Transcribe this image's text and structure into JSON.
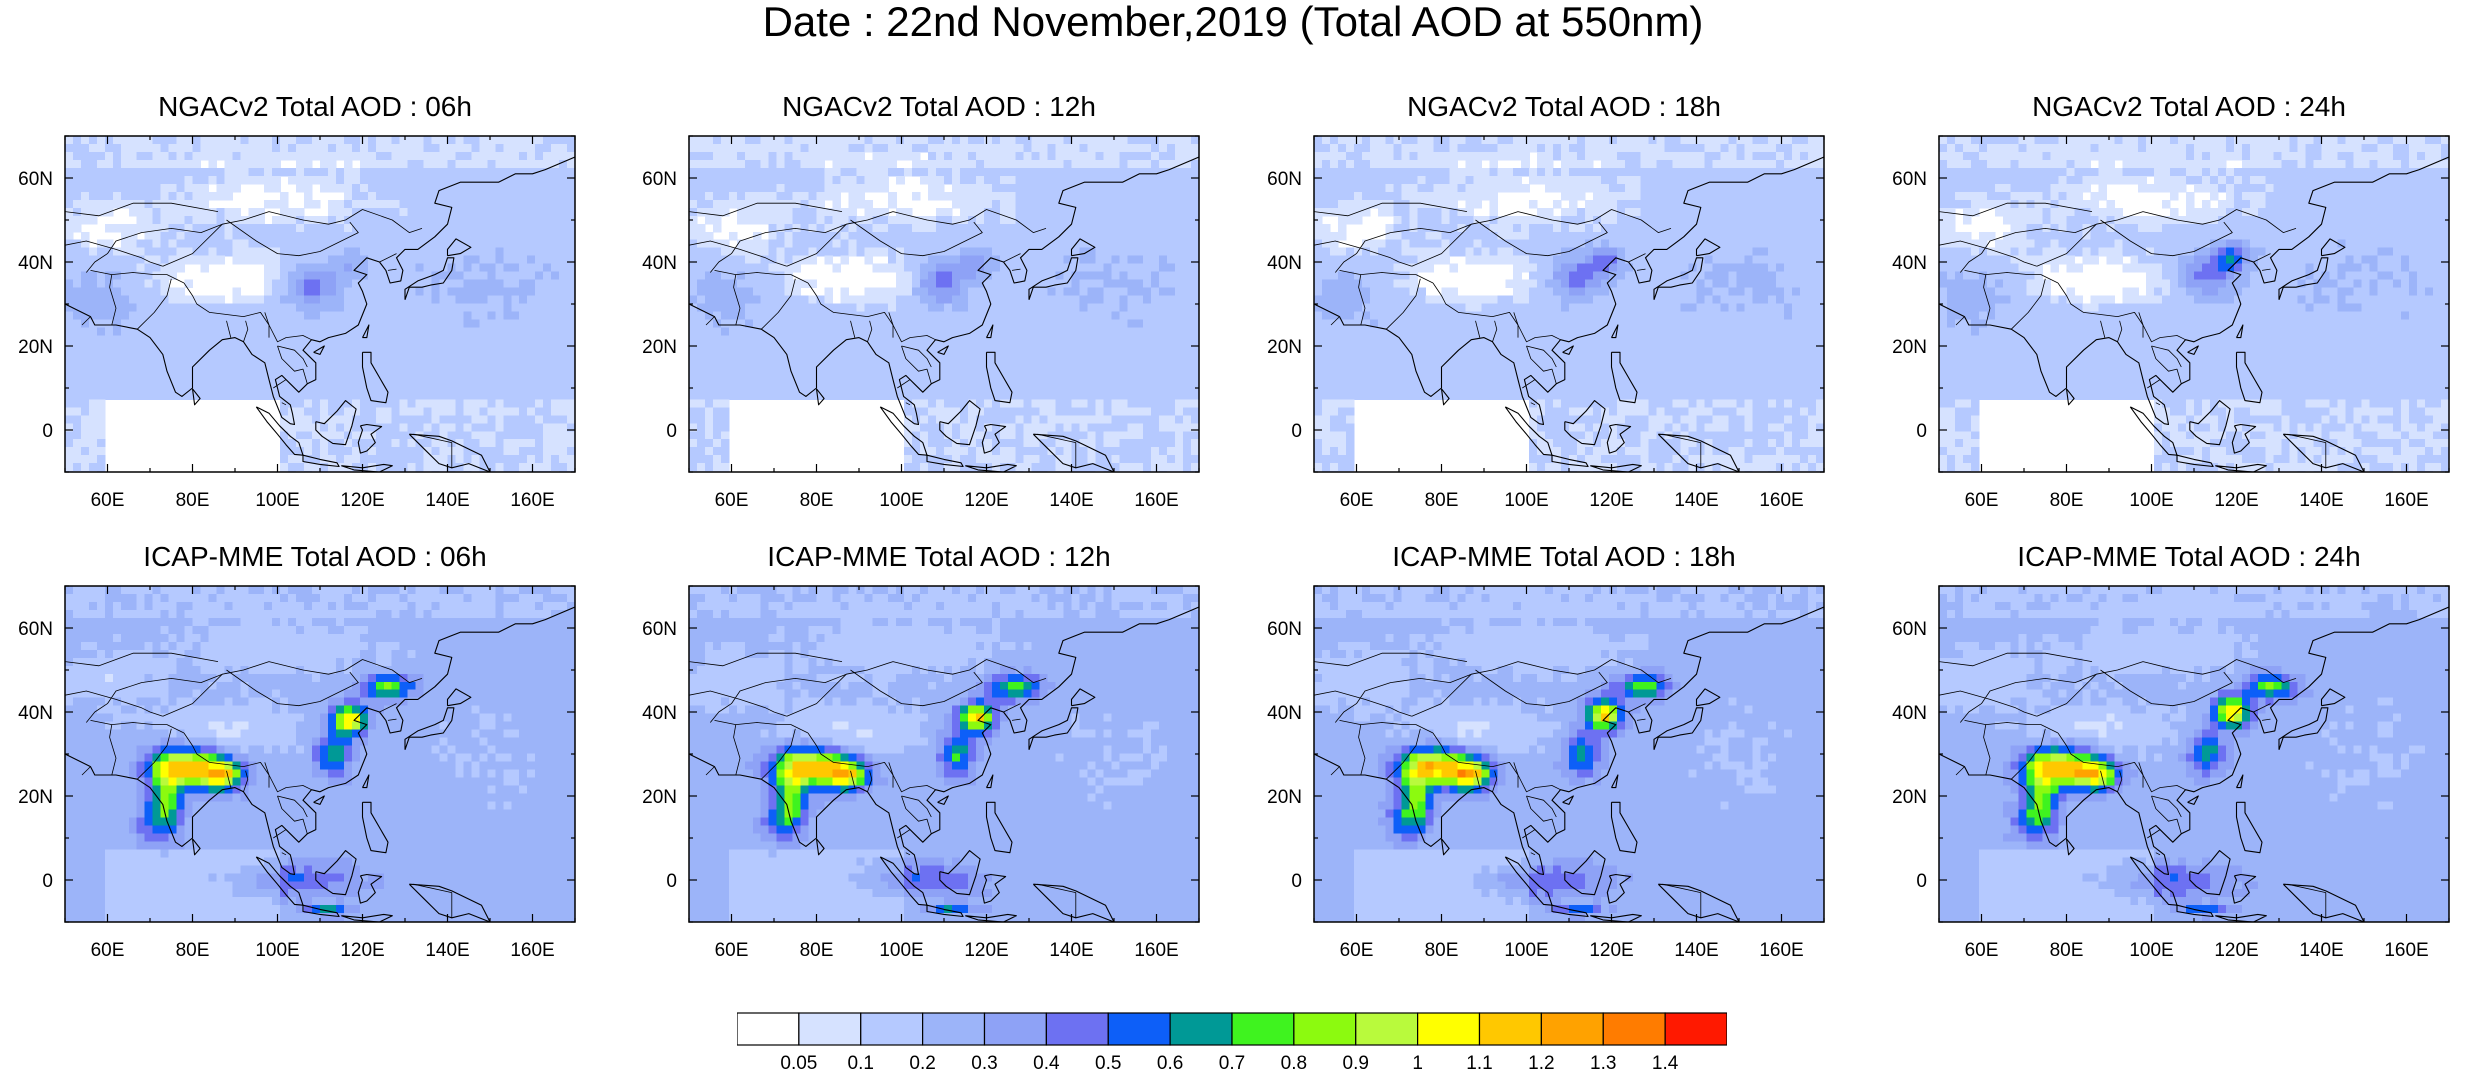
{
  "title": "Date : 22nd November,2019 (Total AOD at 550nm)",
  "map": {
    "lon_range": [
      50,
      170
    ],
    "lat_range": [
      -10,
      70
    ],
    "lon_ticks": [
      "60E",
      "80E",
      "100E",
      "120E",
      "140E",
      "160E"
    ],
    "lat_ticks": [
      "60N",
      "40N",
      "20N",
      "0"
    ],
    "coastline_color": "#000000",
    "grid": false
  },
  "panels": [
    {
      "title": "NGACv2 Total AOD : 06h",
      "model": "NGACv2",
      "hour": "06h"
    },
    {
      "title": "NGACv2 Total AOD : 12h",
      "model": "NGACv2",
      "hour": "12h"
    },
    {
      "title": "NGACv2 Total AOD : 18h",
      "model": "NGACv2",
      "hour": "18h"
    },
    {
      "title": "NGACv2 Total AOD : 24h",
      "model": "NGACv2",
      "hour": "24h"
    },
    {
      "title": "ICAP-MME Total AOD : 06h",
      "model": "ICAP-MME",
      "hour": "06h"
    },
    {
      "title": "ICAP-MME Total AOD : 12h",
      "model": "ICAP-MME",
      "hour": "12h"
    },
    {
      "title": "ICAP-MME Total AOD : 18h",
      "model": "ICAP-MME",
      "hour": "18h"
    },
    {
      "title": "ICAP-MME Total AOD : 24h",
      "model": "ICAP-MME",
      "hour": "24h"
    }
  ],
  "colorbar": {
    "labels": [
      "0.05",
      "0.1",
      "0.2",
      "0.3",
      "0.4",
      "0.5",
      "0.6",
      "0.7",
      "0.8",
      "0.9",
      "1",
      "1.1",
      "1.2",
      "1.3",
      "1.4"
    ],
    "colors": [
      "#ffffff",
      "#d6e2ff",
      "#b5c9ff",
      "#9cb4f9",
      "#8ea2f6",
      "#6d71f2",
      "#0d5ff8",
      "#009996",
      "#3ff31f",
      "#8cfa0f",
      "#b9fa3c",
      "#ffff00",
      "#ffc800",
      "#ffa200",
      "#ff7c00",
      "#ff1900"
    ]
  }
}
